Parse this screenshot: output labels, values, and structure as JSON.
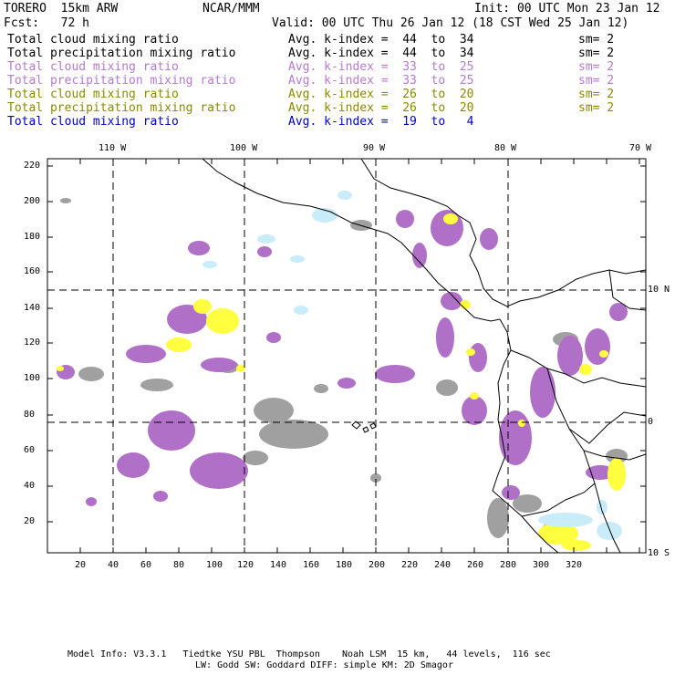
{
  "header": {
    "model": "TORERO  15km ARW",
    "org": "NCAR/MMM",
    "init": "Init: 00 UTC Mon 23 Jan 12",
    "fcst": "Fcst:   72 h",
    "valid": "Valid: 00 UTC Thu 26 Jan 12 (18 CST Wed 25 Jan 12)"
  },
  "legend": [
    {
      "field": "Total cloud mixing ratio",
      "kidx": "Avg. k-index =  44  to  34",
      "sm": "sm= 2",
      "color": "#000000"
    },
    {
      "field": "Total precipitation mixing ratio",
      "kidx": "Avg. k-index =  44  to  34",
      "sm": "sm= 2",
      "color": "#000000"
    },
    {
      "field": "Total cloud mixing ratio",
      "kidx": "Avg. k-index =  33  to  25",
      "sm": "sm= 2",
      "color": "#b57ad0"
    },
    {
      "field": "Total precipitation mixing ratio",
      "kidx": "Avg. k-index =  33  to  25",
      "sm": "sm= 2",
      "color": "#b57ad0"
    },
    {
      "field": "Total cloud mixing ratio",
      "kidx": "Avg. k-index =  26  to  20",
      "sm": "sm= 2",
      "color": "#8a8a00"
    },
    {
      "field": "Total precipitation mixing ratio",
      "kidx": "Avg. k-index =  26  to  20",
      "sm": "sm= 2",
      "color": "#8a8a00"
    },
    {
      "field": "Total cloud mixing ratio",
      "kidx": "Avg. k-index =  19  to   4",
      "sm": "",
      "color": "#0000cc"
    }
  ],
  "axes": {
    "lon_labels": [
      "110 W",
      "100 W",
      "90 W",
      "80 W",
      "70 W"
    ],
    "lat_labels": [
      "10 N",
      "0",
      "10 S"
    ],
    "y_ticks": [
      "220",
      "200",
      "180",
      "160",
      "140",
      "120",
      "100",
      "80",
      "60",
      "40",
      "20"
    ],
    "x_ticks": [
      "20",
      "40",
      "60",
      "80",
      "100",
      "120",
      "140",
      "160",
      "180",
      "200",
      "220",
      "240",
      "260",
      "280",
      "300",
      "320"
    ]
  },
  "footer": {
    "line1": "Model Info: V3.3.1   Tiedtke YSU PBL  Thompson    Noah LSM  15 km,   44 levels,  116 sec",
    "line2": "LW: Godd SW: Goddard DIFF: simple KM: 2D Smagor"
  },
  "colors": {
    "gray": "#a0a0a0",
    "purple": "#b070c8",
    "yellow": "#ffff40",
    "light_blue": "#c8ecf8"
  }
}
